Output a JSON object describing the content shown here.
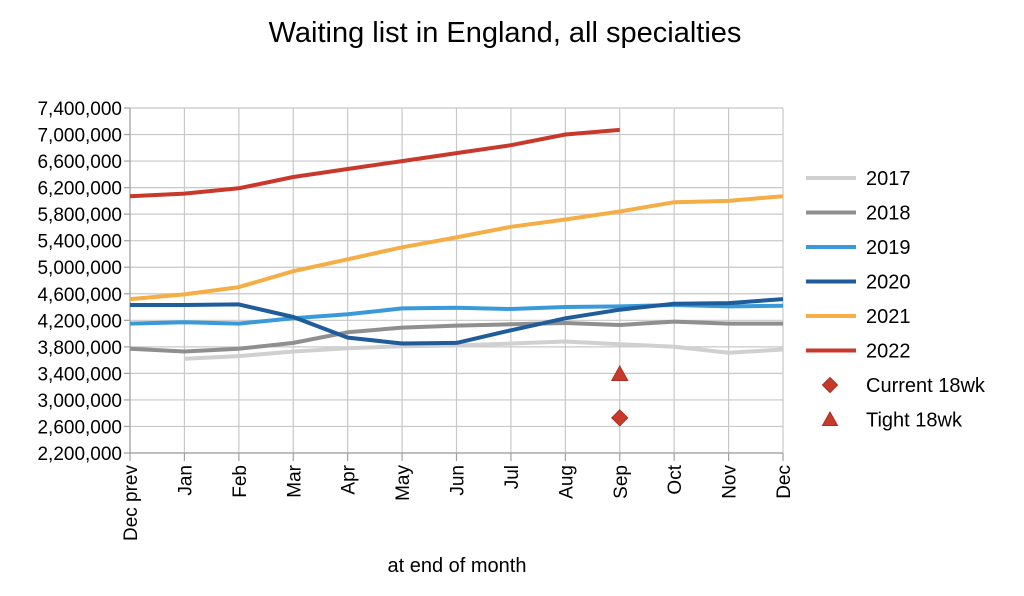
{
  "chart_data": {
    "type": "line",
    "title": "Waiting list in England, all specialties",
    "xlabel": "at end of month",
    "ylabel": "",
    "categories": [
      "Dec prev",
      "Jan",
      "Feb",
      "Mar",
      "Apr",
      "May",
      "Jun",
      "Jul",
      "Aug",
      "Sep",
      "Oct",
      "Nov",
      "Dec"
    ],
    "ylim": [
      2200000,
      7400000
    ],
    "yticks": [
      "7,400,000",
      "7,000,000",
      "6,600,000",
      "6,200,000",
      "5,800,000",
      "5,400,000",
      "5,000,000",
      "4,600,000",
      "4,200,000",
      "3,800,000",
      "3,400,000",
      "3,000,000",
      "2,600,000",
      "2,200,000"
    ],
    "ytick_values": [
      7400000,
      7000000,
      6600000,
      6200000,
      5800000,
      5400000,
      5000000,
      4600000,
      4200000,
      3800000,
      3400000,
      3000000,
      2600000,
      2200000
    ],
    "grid": true,
    "legend_position": "right",
    "series": [
      {
        "name": "2017",
        "color": "#d0d0d0",
        "values": [
          null,
          3620000,
          3660000,
          3730000,
          3780000,
          3810000,
          3820000,
          3850000,
          3880000,
          3840000,
          3800000,
          3710000,
          3760000
        ]
      },
      {
        "name": "2018",
        "color": "#8f8f8f",
        "values": [
          3770000,
          3730000,
          3770000,
          3860000,
          4020000,
          4090000,
          4120000,
          4140000,
          4160000,
          4130000,
          4180000,
          4150000,
          4150000
        ]
      },
      {
        "name": "2019",
        "color": "#3a9ad9",
        "values": [
          4150000,
          4170000,
          4150000,
          4230000,
          4290000,
          4380000,
          4390000,
          4370000,
          4400000,
          4410000,
          4430000,
          4410000,
          4420000
        ]
      },
      {
        "name": "2020",
        "color": "#1f5c99",
        "values": [
          4430000,
          4430000,
          4440000,
          4250000,
          3940000,
          3850000,
          3860000,
          4050000,
          4230000,
          4360000,
          4450000,
          4460000,
          4520000
        ]
      },
      {
        "name": "2021",
        "color": "#f5ad45",
        "values": [
          4520000,
          4590000,
          4700000,
          4940000,
          5120000,
          5300000,
          5450000,
          5610000,
          5720000,
          5840000,
          5980000,
          6000000,
          6070000
        ]
      },
      {
        "name": "2022",
        "color": "#c8392b",
        "values": [
          6070000,
          6110000,
          6190000,
          6360000,
          6480000,
          6600000,
          6720000,
          6840000,
          7000000,
          7070000,
          null,
          null,
          null
        ]
      }
    ],
    "markers": [
      {
        "name": "Current 18wk",
        "shape": "diamond",
        "color": "#c8392b",
        "category": "Sep",
        "value": 2730000
      },
      {
        "name": "Tight 18wk",
        "shape": "triangle",
        "color": "#c8392b",
        "category": "Sep",
        "value": 3390000
      }
    ]
  }
}
